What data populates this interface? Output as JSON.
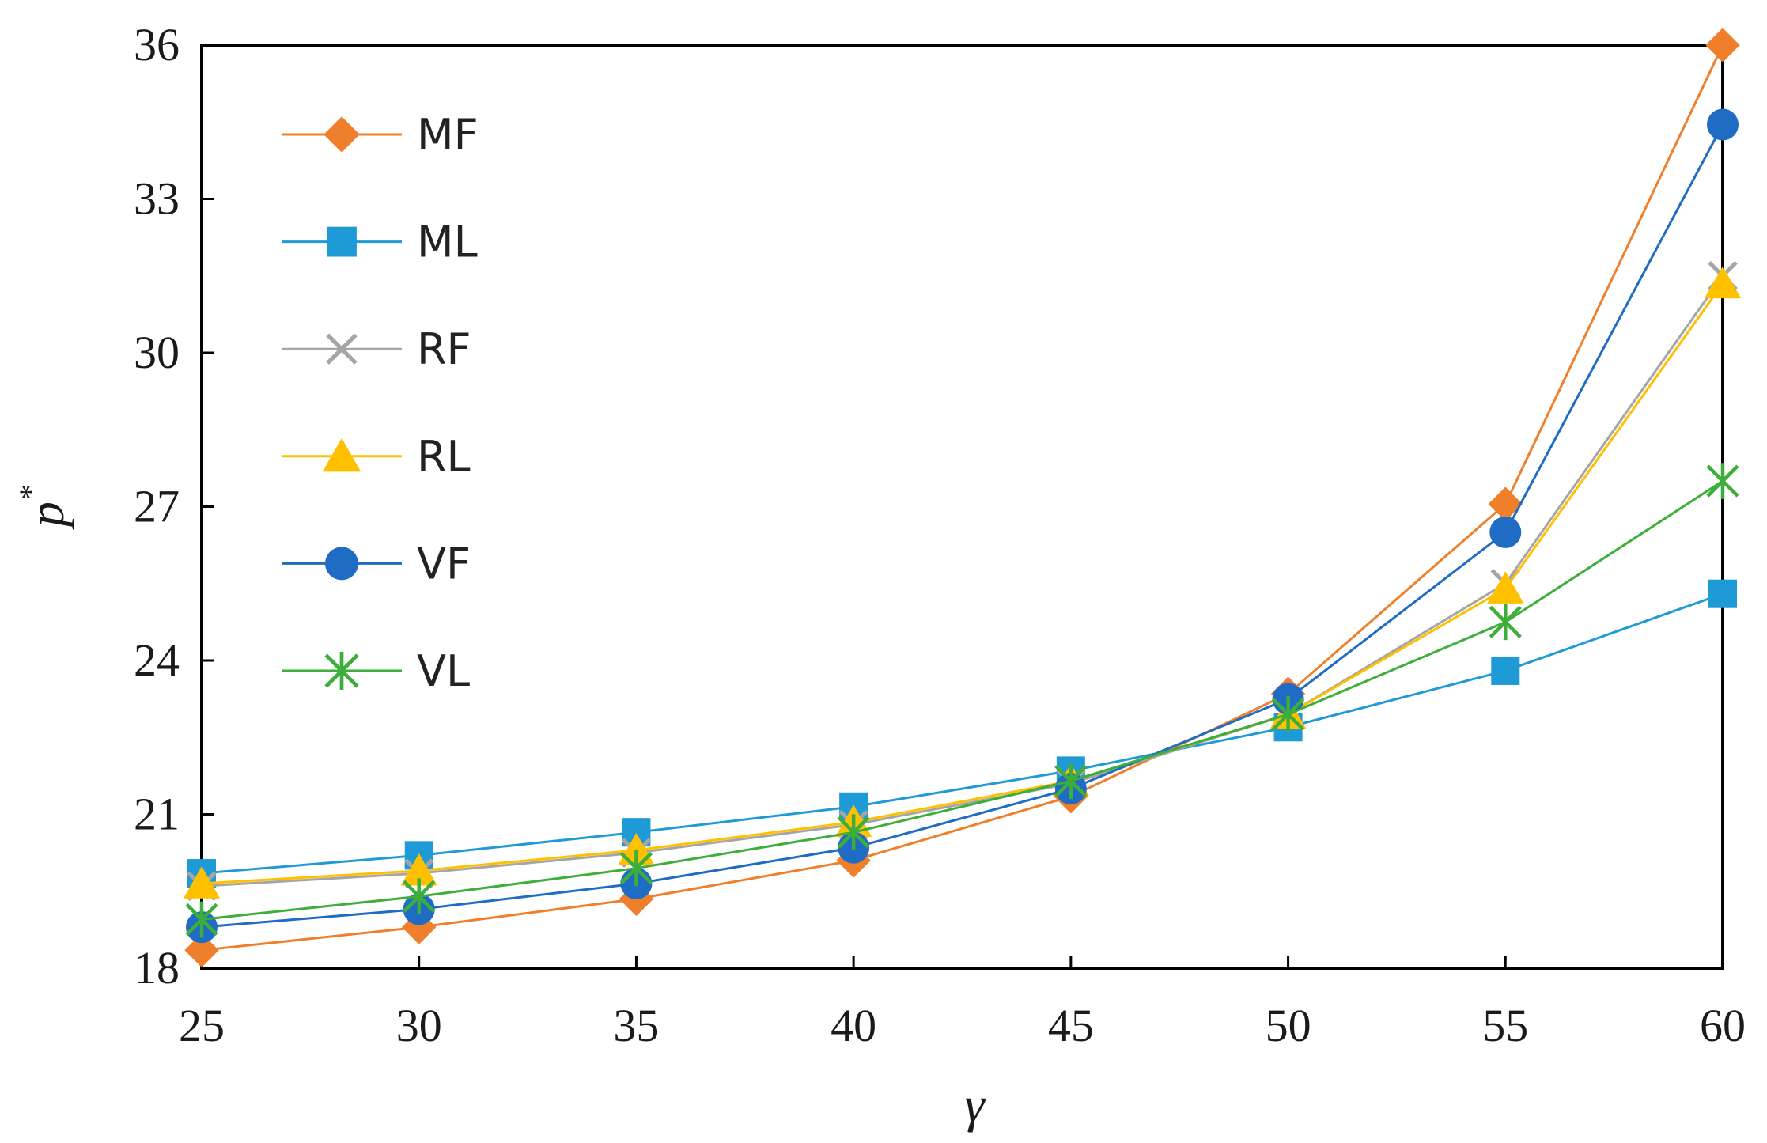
{
  "chart_data": {
    "type": "line",
    "title": "",
    "xlabel": "γ",
    "ylabel": "p",
    "ylabel_superscript": "*",
    "x": [
      25,
      30,
      35,
      40,
      45,
      50,
      55,
      60
    ],
    "x_ticks": [
      "25",
      "30",
      "35",
      "40",
      "45",
      "50",
      "55",
      "60"
    ],
    "xlim": [
      25,
      60
    ],
    "ylim": [
      18,
      36
    ],
    "y_ticks": [
      "18",
      "21",
      "24",
      "27",
      "30",
      "33",
      "36"
    ],
    "y_tick_values": [
      18,
      21,
      24,
      27,
      30,
      33,
      36
    ],
    "grid": false,
    "legend_position": "top-left",
    "series": [
      {
        "name": "MF",
        "color": "#F07F2B",
        "marker": "diamond",
        "values": [
          18.35,
          18.8,
          19.35,
          20.1,
          21.35,
          23.35,
          27.05,
          36.0
        ]
      },
      {
        "name": "ML",
        "color": "#1E9AD6",
        "marker": "square",
        "values": [
          19.85,
          20.2,
          20.65,
          21.15,
          21.85,
          22.7,
          23.8,
          25.3
        ]
      },
      {
        "name": "RF",
        "color": "#A5A5A5",
        "marker": "x",
        "values": [
          19.6,
          19.85,
          20.25,
          20.8,
          21.6,
          22.95,
          25.5,
          31.5
        ]
      },
      {
        "name": "RL",
        "color": "#FFC000",
        "marker": "triangle",
        "values": [
          19.65,
          19.9,
          20.3,
          20.85,
          21.65,
          22.95,
          25.4,
          31.35
        ]
      },
      {
        "name": "VF",
        "color": "#1F6CC4",
        "marker": "circle",
        "values": [
          18.8,
          19.15,
          19.65,
          20.35,
          21.5,
          23.25,
          26.5,
          34.45
        ]
      },
      {
        "name": "VL",
        "color": "#3DAE3A",
        "marker": "asterisk",
        "values": [
          18.95,
          19.4,
          19.95,
          20.65,
          21.65,
          22.95,
          24.75,
          27.5
        ]
      }
    ]
  }
}
